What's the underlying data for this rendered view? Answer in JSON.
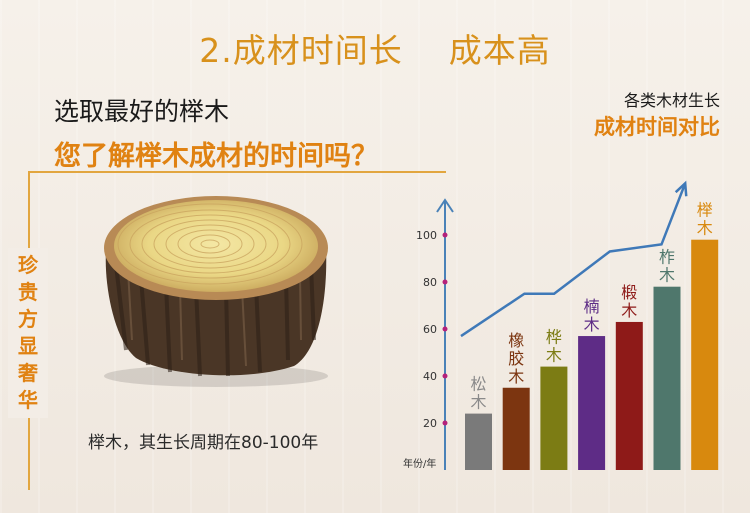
{
  "page": {
    "title": "2.成材时间长    成本高",
    "subtitle": "选取最好的榉木",
    "question": "您了解榉木成材的时间吗？",
    "side_label": [
      "珍",
      "贵",
      "方",
      "显",
      "奢",
      "华"
    ],
    "stump_caption": "榉木，其生长周期在80-100年"
  },
  "chart_data": {
    "type": "bar",
    "title": "各类木材生长",
    "subtitle": "成材时间对比",
    "ylabel": "年份/年",
    "ylim": [
      0,
      100
    ],
    "yticks": [
      20,
      40,
      60,
      80,
      100
    ],
    "categories": [
      "松木",
      "橡胶木",
      "桦木",
      "楠木",
      "椴木",
      "柞木",
      "榉木"
    ],
    "values": [
      24,
      35,
      44,
      57,
      63,
      78,
      98
    ],
    "bar_colors": [
      "#7a7a7a",
      "#7c3510",
      "#7c7c14",
      "#5e2c86",
      "#8e1a18",
      "#4f776c",
      "#d8890e"
    ],
    "label_colors": [
      "#8a8a8a",
      "#7c3510",
      "#7c7c14",
      "#5e2c86",
      "#8e1a18",
      "#4f776c",
      "#d8890e"
    ],
    "trend_values": [
      57,
      75,
      75,
      93,
      96,
      122
    ],
    "colors": {
      "axis": "#4a82b8",
      "tick_dot": "#b5217a",
      "trend": "#3f79b8"
    }
  }
}
